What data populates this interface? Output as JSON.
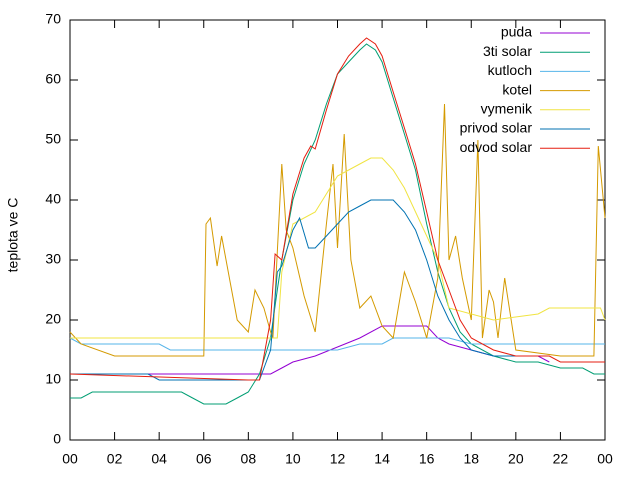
{
  "chart_data": {
    "type": "line",
    "ylabel": "teplota ve C",
    "xlim": [
      0,
      24
    ],
    "ylim": [
      0,
      70
    ],
    "xticks": [
      {
        "value": 0,
        "label": "00"
      },
      {
        "value": 2,
        "label": "02"
      },
      {
        "value": 4,
        "label": "04"
      },
      {
        "value": 6,
        "label": "06"
      },
      {
        "value": 8,
        "label": "08"
      },
      10,
      12,
      14,
      16,
      18,
      20,
      22,
      {
        "value": 24,
        "label": "00"
      }
    ],
    "yticks": [
      0,
      10,
      20,
      30,
      40,
      50,
      60,
      70
    ],
    "grid": false,
    "legend": "top-right",
    "series": [
      {
        "name": "puda",
        "color": "#9400d3",
        "x": [
          0,
          8.5,
          9,
          9.5,
          10,
          11,
          12,
          13,
          14,
          16,
          16.5,
          17,
          18,
          19,
          21,
          21.5
        ],
        "values": [
          11,
          11,
          11,
          12,
          13,
          14,
          15.5,
          17,
          19,
          19,
          17,
          16,
          15,
          14,
          14,
          13
        ]
      },
      {
        "name": "3ti solar",
        "color": "#009e73",
        "x": [
          0,
          0.5,
          1,
          5,
          5.5,
          6,
          7,
          7.5,
          8,
          8.5,
          9,
          9.3,
          9.5,
          10,
          10.5,
          11,
          11.5,
          12,
          12.5,
          13,
          13.3,
          13.7,
          14,
          14.5,
          15,
          15.5,
          16,
          16.5,
          17,
          17.5,
          18,
          19,
          20,
          21,
          22,
          23,
          23.5,
          24
        ],
        "values": [
          7,
          7,
          8,
          8,
          7,
          6,
          6,
          7,
          8,
          11,
          17,
          25,
          30,
          40,
          46,
          50,
          56,
          61,
          63,
          65,
          66,
          65,
          63,
          57,
          51,
          45,
          36,
          28,
          22,
          18,
          16,
          14,
          13,
          13,
          12,
          12,
          11,
          11
        ]
      },
      {
        "name": "kutloch",
        "color": "#56b4e9",
        "x": [
          0,
          0.5,
          2,
          4,
          4.5,
          9,
          12,
          13,
          14,
          14.5,
          16,
          17,
          18,
          24
        ],
        "values": [
          17,
          16,
          16,
          16,
          15,
          15,
          15,
          16,
          16,
          17,
          17,
          17,
          16,
          16
        ]
      },
      {
        "name": "kotel",
        "color": "#d49a00",
        "x": [
          0,
          0.5,
          2,
          4,
          6,
          6.1,
          6.3,
          6.6,
          6.8,
          7.2,
          7.5,
          8,
          8.3,
          8.7,
          9,
          9.1,
          9.5,
          9.7,
          10,
          10.5,
          11,
          11.5,
          11.8,
          12,
          12.3,
          12.6,
          13,
          13.5,
          14,
          14.5,
          15,
          15.5,
          16,
          16.5,
          16.8,
          17,
          17.3,
          17.6,
          18,
          18.3,
          18.5,
          18.8,
          19,
          19.2,
          19.5,
          20,
          22,
          23,
          23.5,
          23.7,
          24
        ],
        "values": [
          18,
          16,
          14,
          14,
          14,
          36,
          37,
          29,
          34,
          26,
          20,
          18,
          25,
          22,
          18,
          17,
          46,
          35,
          32,
          24,
          18,
          36,
          46,
          32,
          51,
          30,
          22,
          24,
          19,
          17,
          28,
          23,
          17,
          27,
          56,
          30,
          34,
          27,
          20,
          50,
          17,
          25,
          23,
          17,
          27,
          15,
          14,
          14,
          14,
          49,
          37
        ]
      },
      {
        "name": "vymenik",
        "color": "#f0e442",
        "x": [
          0,
          6,
          9.3,
          9.5,
          10,
          11,
          12,
          13,
          13.5,
          14,
          14.5,
          15,
          16,
          16.5,
          17,
          19,
          21,
          21.5,
          23,
          23.8,
          24
        ],
        "values": [
          17,
          17,
          17,
          28,
          36,
          38,
          44,
          46,
          47,
          47,
          45,
          42,
          34,
          30,
          22,
          20,
          21,
          22,
          22,
          22,
          20
        ]
      },
      {
        "name": "privod solar",
        "color": "#0072b2",
        "x": [
          0,
          3.5,
          4,
          8.5,
          9,
          9.3,
          9.5,
          10,
          10.3,
          10.7,
          11,
          11.5,
          12,
          12.5,
          13,
          13.5,
          14,
          14.5,
          15,
          15.5,
          16,
          16.5,
          17,
          17.5,
          18,
          19,
          20,
          21
        ],
        "values": [
          11,
          11,
          10,
          10,
          15,
          28,
          29,
          35,
          37,
          32,
          32,
          34,
          36,
          38,
          39,
          40,
          40,
          40,
          38,
          35,
          30,
          24,
          20,
          17,
          15,
          14,
          14,
          14
        ]
      },
      {
        "name": "odvod solar",
        "color": "#e51e10",
        "x": [
          0,
          8,
          8.5,
          9,
          9.2,
          9.5,
          10,
          10.5,
          10.8,
          11,
          11.5,
          12,
          12.5,
          13,
          13.3,
          13.7,
          14,
          14.5,
          15,
          15.5,
          16,
          16.5,
          17,
          17.5,
          18,
          19,
          20,
          21,
          21.5,
          22,
          24
        ],
        "values": [
          11,
          10,
          10,
          20,
          31,
          30,
          41,
          47,
          49,
          48.5,
          55,
          61,
          64,
          66,
          67,
          66,
          64,
          58,
          52,
          46,
          38,
          30,
          25,
          20,
          17,
          15,
          14,
          14,
          14,
          13,
          13
        ]
      }
    ]
  }
}
